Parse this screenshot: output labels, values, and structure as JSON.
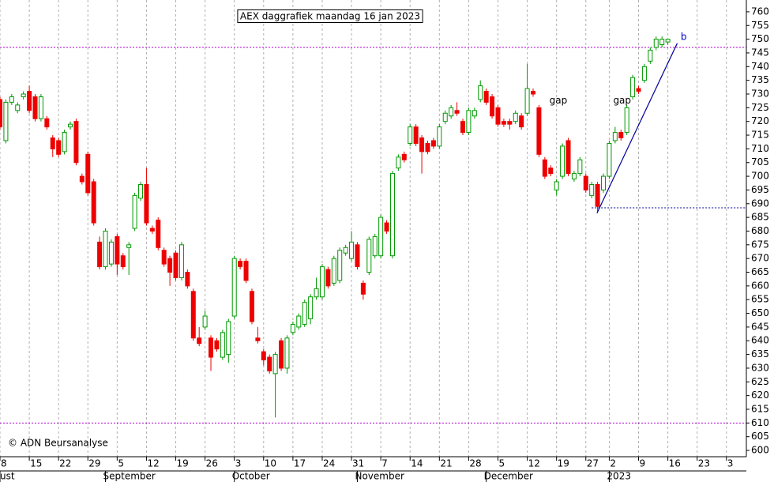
{
  "chart_data": {
    "type": "candlestick",
    "title": "AEX daggrafiek maandag 16 jan 2023",
    "credit": "© ADN Beursanalyse",
    "up_color": "#009900",
    "down_color": "#ee0000",
    "grid": true,
    "x": [
      0,
      1,
      2,
      3,
      4,
      5,
      6,
      7,
      8,
      9,
      10,
      11,
      12,
      13,
      14,
      15,
      16,
      17,
      18,
      19,
      20,
      21,
      22,
      23,
      24,
      25,
      26,
      27,
      28,
      29,
      30,
      31,
      32,
      33,
      34,
      35,
      36,
      37,
      38,
      39,
      40,
      41,
      42,
      43,
      44,
      45,
      46,
      47,
      48,
      49,
      50,
      51,
      52,
      53,
      54,
      55,
      56,
      57,
      58,
      59,
      60,
      61,
      62,
      63,
      64,
      65,
      66,
      67,
      68,
      69,
      70,
      71,
      72,
      73,
      74,
      75,
      76,
      77,
      78,
      79,
      80,
      81,
      82,
      83,
      84,
      85,
      86,
      87,
      88,
      89,
      90,
      91,
      92,
      93,
      94,
      95,
      96,
      97,
      98,
      99,
      100,
      101,
      102,
      103,
      104,
      105,
      106,
      107,
      108,
      109,
      110,
      111,
      112,
      113,
      114
    ],
    "open": [
      728,
      713,
      727,
      724,
      729,
      731,
      729,
      721,
      721,
      714,
      713,
      709,
      718,
      720,
      700,
      708,
      698,
      676,
      667,
      668,
      678,
      671,
      674,
      681,
      692,
      697,
      681,
      684,
      673,
      670,
      672,
      663,
      665,
      658,
      641,
      645,
      641,
      640,
      634,
      635,
      649,
      669,
      669,
      658,
      641,
      636,
      634,
      628,
      640,
      630,
      643,
      645,
      646,
      648,
      656,
      656,
      666,
      661,
      662,
      672,
      670,
      675,
      661,
      665,
      671,
      671,
      683,
      671,
      703,
      708,
      712,
      718,
      714,
      712,
      713,
      711,
      720,
      722,
      724,
      720,
      716,
      722,
      728,
      731,
      729,
      725,
      720,
      720,
      720,
      722,
      723,
      731,
      725,
      706,
      703,
      695,
      700,
      713,
      699,
      701,
      700,
      693,
      697,
      695,
      700,
      713,
      716,
      716,
      729,
      732,
      735,
      742,
      747,
      748,
      749
    ],
    "high": [
      729,
      728,
      730,
      727,
      731,
      733,
      730,
      730,
      722,
      715,
      714,
      717,
      720,
      721,
      701,
      709,
      699,
      678,
      681,
      677,
      679,
      672,
      676,
      694,
      698,
      703,
      682,
      685,
      674,
      671,
      673,
      676,
      666,
      659,
      645,
      651,
      642,
      641,
      644,
      648,
      671,
      670,
      670,
      659,
      645,
      637,
      635,
      636,
      641,
      642,
      647,
      650,
      655,
      657,
      663,
      668,
      667,
      671,
      674,
      675,
      680,
      676,
      662,
      678,
      679,
      686,
      684,
      702,
      708,
      709,
      719,
      719,
      715,
      713,
      714,
      719,
      724,
      726,
      727,
      721,
      725,
      725,
      735,
      732,
      730,
      726,
      721,
      721,
      724,
      723,
      741,
      732,
      726,
      707,
      704,
      699,
      712,
      714,
      702,
      707,
      701,
      698,
      698,
      701,
      713,
      718,
      717,
      726,
      737,
      733,
      741,
      747,
      751,
      751,
      750
    ],
    "low": [
      717,
      712,
      726,
      723,
      728,
      723,
      720,
      720,
      717,
      707,
      707,
      708,
      717,
      704,
      697,
      693,
      682,
      666,
      666,
      667,
      664,
      666,
      664,
      680,
      691,
      682,
      679,
      673,
      667,
      660,
      662,
      662,
      659,
      640,
      638,
      644,
      629,
      636,
      633,
      632,
      648,
      666,
      661,
      646,
      639,
      631,
      628,
      612,
      629,
      628,
      642,
      644,
      645,
      646,
      655,
      655,
      659,
      660,
      661,
      671,
      669,
      666,
      655,
      664,
      670,
      670,
      679,
      670,
      702,
      705,
      711,
      711,
      701,
      708,
      710,
      710,
      719,
      721,
      722,
      715,
      715,
      721,
      727,
      726,
      721,
      718,
      718,
      717,
      719,
      717,
      722,
      729,
      707,
      699,
      700,
      693,
      699,
      700,
      698,
      700,
      694,
      692,
      687,
      694,
      699,
      712,
      713,
      715,
      728,
      730,
      734,
      741,
      746,
      747,
      748
    ],
    "close": [
      718,
      727,
      729,
      726,
      730,
      724,
      721,
      729,
      718,
      710,
      708,
      716,
      719,
      705,
      698,
      694,
      683,
      667,
      680,
      676,
      668,
      667,
      675,
      693,
      697,
      683,
      680,
      674,
      668,
      665,
      663,
      675,
      660,
      641,
      639,
      649,
      634,
      637,
      643,
      647,
      670,
      667,
      662,
      647,
      640,
      633,
      629,
      635,
      630,
      641,
      646,
      649,
      654,
      656,
      659,
      667,
      660,
      670,
      673,
      674,
      676,
      667,
      657,
      677,
      678,
      685,
      680,
      701,
      707,
      706,
      718,
      712,
      709,
      709,
      711,
      718,
      723,
      725,
      723,
      716,
      724,
      724,
      733,
      727,
      722,
      719,
      719,
      719,
      723,
      718,
      732,
      730,
      708,
      700,
      701,
      698,
      711,
      701,
      701,
      706,
      695,
      697,
      689,
      700,
      712,
      716,
      714,
      725,
      736,
      731,
      740,
      746,
      750,
      750,
      750
    ],
    "xlim": [
      0,
      127.4
    ],
    "xticks": [
      {
        "value": 0,
        "label": "8"
      },
      {
        "value": 5,
        "label": "15"
      },
      {
        "value": 10,
        "label": "22"
      },
      {
        "value": 15,
        "label": "29"
      },
      {
        "value": 20,
        "label": "5"
      },
      {
        "value": 25,
        "label": "12"
      },
      {
        "value": 30,
        "label": "19"
      },
      {
        "value": 35,
        "label": "26"
      },
      {
        "value": 40,
        "label": "3"
      },
      {
        "value": 45,
        "label": "10"
      },
      {
        "value": 50,
        "label": "17"
      },
      {
        "value": 55,
        "label": "24"
      },
      {
        "value": 60,
        "label": "31"
      },
      {
        "value": 65,
        "label": "7"
      },
      {
        "value": 70,
        "label": "14"
      },
      {
        "value": 75,
        "label": "21"
      },
      {
        "value": 80,
        "label": "28"
      },
      {
        "value": 85,
        "label": "5"
      },
      {
        "value": 90,
        "label": "12"
      },
      {
        "value": 95,
        "label": "19"
      },
      {
        "value": 100,
        "label": "27"
      },
      {
        "value": 104,
        "label": "2"
      },
      {
        "value": 109,
        "label": "9"
      },
      {
        "value": 114,
        "label": "16"
      },
      {
        "value": 119,
        "label": "23"
      },
      {
        "value": 124,
        "label": "3"
      }
    ],
    "month_labels": [
      {
        "value": 0,
        "label": "ust"
      },
      {
        "value": 18,
        "label": "September"
      },
      {
        "value": 40,
        "label": "October"
      },
      {
        "value": 61,
        "label": "November"
      },
      {
        "value": 83,
        "label": "December"
      },
      {
        "value": 104,
        "label": "2023"
      }
    ],
    "ylim": [
      597.7,
      764.3
    ],
    "yticks": [
      600,
      605,
      610,
      615,
      620,
      625,
      630,
      635,
      640,
      645,
      650,
      655,
      660,
      665,
      670,
      675,
      680,
      685,
      690,
      695,
      700,
      705,
      710,
      715,
      720,
      725,
      730,
      735,
      740,
      745,
      750,
      755,
      760
    ],
    "hlines": [
      {
        "value": 747,
        "color": "#b000d0"
      },
      {
        "value": 610,
        "color": "#b000d0"
      },
      {
        "value": 688.5,
        "color": "#000099",
        "from": 101
      }
    ],
    "trendline": {
      "color": "#000099",
      "x": [
        101.9,
        115.6
      ],
      "y": [
        686.5,
        748.5
      ]
    },
    "annotations": [
      {
        "text": "gap",
        "x": 95.3,
        "y": 727.5,
        "color": "#000000"
      },
      {
        "text": "gap",
        "x": 106.2,
        "y": 727.5,
        "color": "#000000"
      },
      {
        "text": "b",
        "x": 116.7,
        "y": 750.8,
        "color": "#0000cc"
      }
    ]
  }
}
